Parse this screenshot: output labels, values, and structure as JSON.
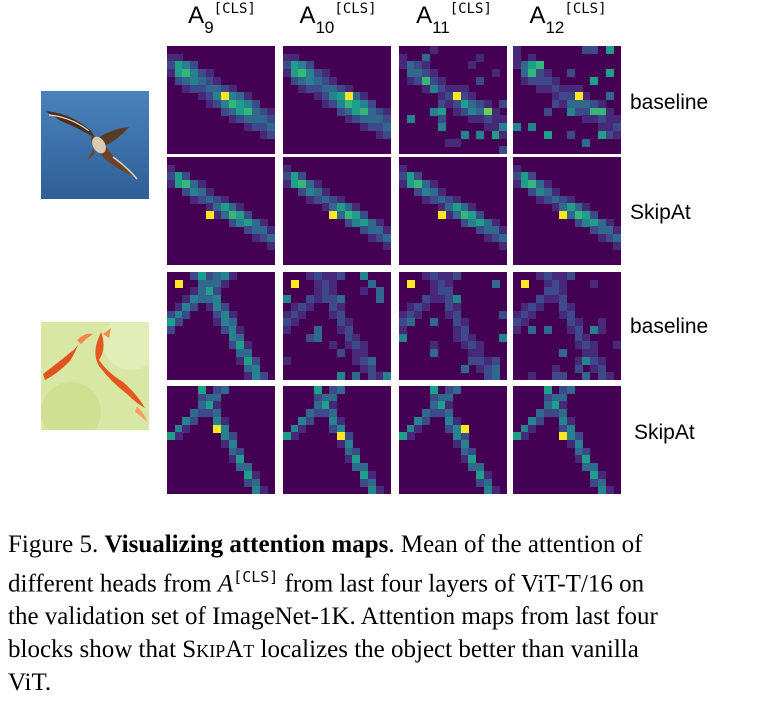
{
  "columns": [
    {
      "base": "A",
      "sub": "9",
      "sup": "[CLS]"
    },
    {
      "base": "A",
      "sub": "10",
      "sup": "[CLS]"
    },
    {
      "base": "A",
      "sub": "11",
      "sup": "[CLS]"
    },
    {
      "base": "A",
      "sub": "12",
      "sup": "[CLS]"
    }
  ],
  "rows": [
    {
      "label": "baseline"
    },
    {
      "label": "SkipAt"
    },
    {
      "label": "baseline"
    },
    {
      "label": "SkipAt"
    }
  ],
  "images": [
    {
      "name": "bird-image",
      "colors": {
        "sky": "#3a6fa8",
        "bird": "#5a3a22"
      }
    },
    {
      "name": "fish-image",
      "colors": {
        "water": "#d9e7a5",
        "fish": "#e0521e"
      }
    }
  ],
  "colormap": [
    "#440154",
    "#482878",
    "#3e4989",
    "#31688e",
    "#26828e",
    "#1f9e89",
    "#35b779",
    "#6ece58",
    "#b5de2b",
    "#fde725"
  ],
  "caption": {
    "figure_label": "Figure 5.",
    "title": "Visualizing attention maps",
    "line1_rest": ". Mean of the attention of",
    "line2_a": "different heads from ",
    "line2_sym": "A",
    "line2_sup": "[CLS]",
    "line2_b": " from last four layers of ViT-T/16 on",
    "line3": "the validation set of ImageNet-1K. Attention maps from last four",
    "line4_a": "blocks show that ",
    "line4_sc": "SkipAt",
    "line4_b": " localizes the object better than vanilla",
    "line5": "ViT."
  }
}
